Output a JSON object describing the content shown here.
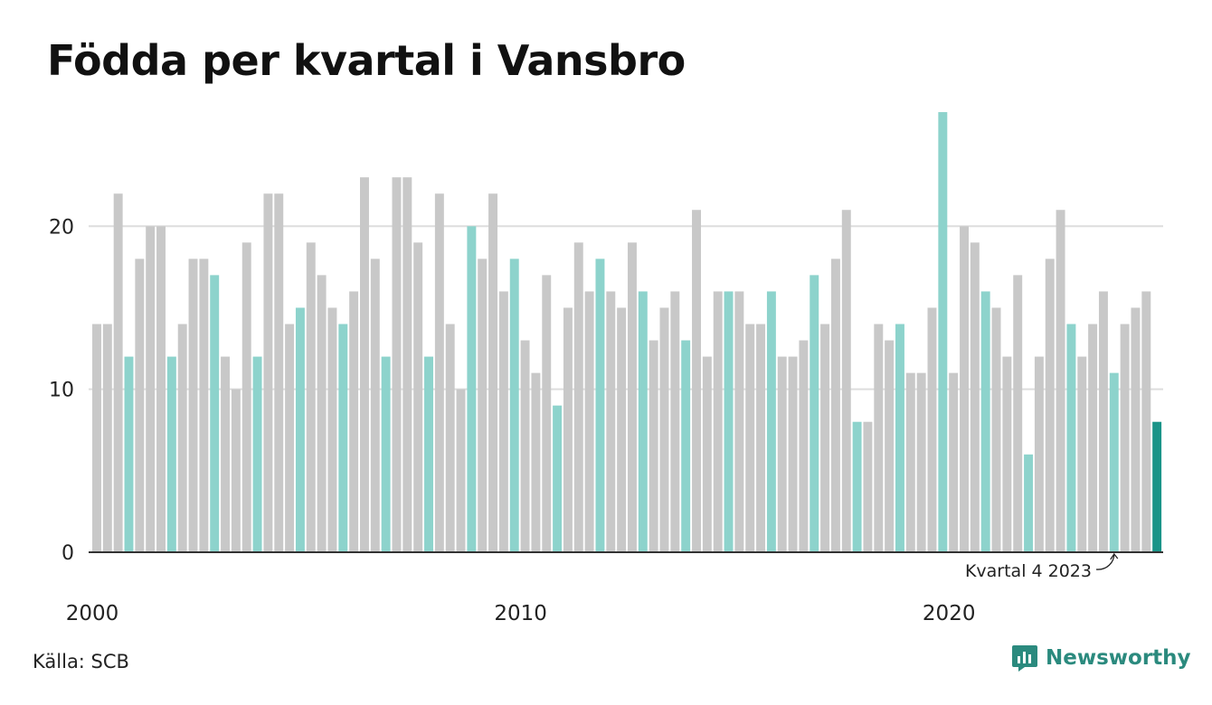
{
  "title": "Födda per kvartal i Vansbro",
  "source": "Källa: SCB",
  "brand": {
    "name": "Newsworthy",
    "icon": "chart-bubble-icon"
  },
  "colors": {
    "gray": "#c8c8c8",
    "q4": "#8dd3cc",
    "latest": "#1a9488",
    "grid": "#dddddd",
    "axis": "#333333"
  },
  "chart_data": {
    "type": "bar",
    "ylim": [
      0,
      28
    ],
    "yticks": [
      0,
      10,
      20
    ],
    "xticks": [
      "2000",
      "2010",
      "2020"
    ],
    "start_year": 2000,
    "quarters_per_year": 4,
    "annotation": "Kvartal 4 2023",
    "values": [
      14,
      14,
      22,
      12,
      18,
      20,
      20,
      12,
      14,
      18,
      18,
      17,
      12,
      10,
      19,
      12,
      22,
      22,
      14,
      15,
      19,
      17,
      15,
      14,
      16,
      23,
      18,
      12,
      23,
      23,
      19,
      12,
      22,
      14,
      10,
      20,
      18,
      22,
      16,
      18,
      13,
      11,
      17,
      9,
      15,
      19,
      16,
      18,
      16,
      15,
      19,
      16,
      13,
      15,
      16,
      13,
      21,
      12,
      16,
      16,
      16,
      14,
      14,
      16,
      12,
      12,
      13,
      17,
      14,
      18,
      21,
      8,
      8,
      14,
      13,
      14,
      11,
      11,
      15,
      27,
      11,
      20,
      19,
      16,
      15,
      12,
      17,
      6,
      12,
      18,
      21,
      14,
      12,
      14,
      16,
      11,
      14,
      15,
      16,
      8
    ]
  }
}
